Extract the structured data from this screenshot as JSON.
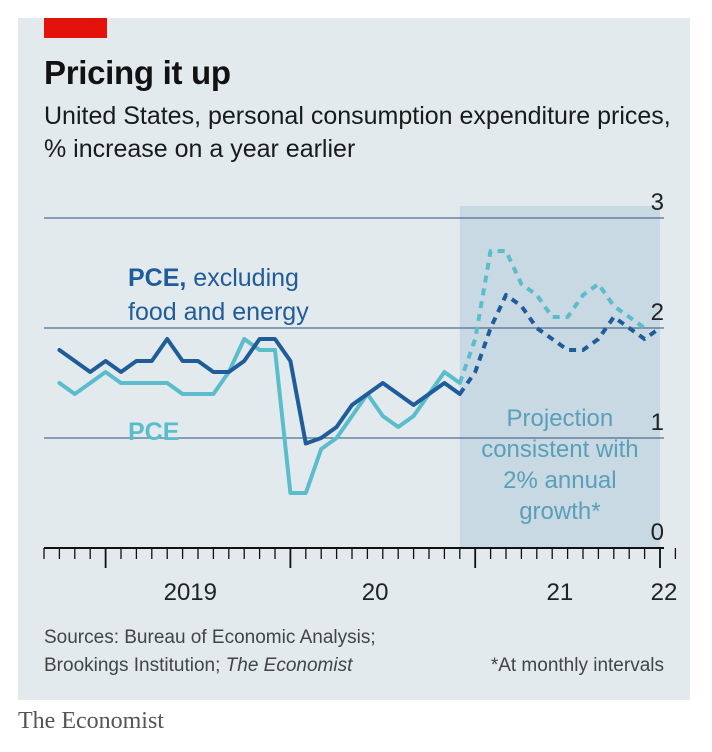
{
  "chart_data": {
    "type": "line",
    "title": "Pricing it up",
    "subtitle": "United States, personal consumption expenditure prices, % increase on a year earlier",
    "ylim": [
      0,
      3
    ],
    "yticks": [
      0,
      1,
      2,
      3
    ],
    "x_tick_labels": [
      "2019",
      "20",
      "21",
      "22"
    ],
    "x_start": "2018-09",
    "x_end": "2022-04",
    "series": [
      {
        "name": "PCE, excluding food and energy",
        "name_bold": "PCE,",
        "name_rest": " excluding food and energy",
        "color": "#1f5c99",
        "actual": [
          [
            "2018-10",
            1.8
          ],
          [
            "2018-11",
            1.7
          ],
          [
            "2018-12",
            1.6
          ],
          [
            "2019-01",
            1.7
          ],
          [
            "2019-02",
            1.6
          ],
          [
            "2019-03",
            1.7
          ],
          [
            "2019-04",
            1.7
          ],
          [
            "2019-05",
            1.9
          ],
          [
            "2019-06",
            1.7
          ],
          [
            "2019-07",
            1.7
          ],
          [
            "2019-08",
            1.6
          ],
          [
            "2019-09",
            1.6
          ],
          [
            "2019-10",
            1.7
          ],
          [
            "2019-11",
            1.9
          ],
          [
            "2019-12",
            1.9
          ],
          [
            "2020-01",
            1.7
          ],
          [
            "2020-02",
            0.95
          ],
          [
            "2020-03",
            1.0
          ],
          [
            "2020-04",
            1.1
          ],
          [
            "2020-05",
            1.3
          ],
          [
            "2020-06",
            1.4
          ],
          [
            "2020-07",
            1.5
          ],
          [
            "2020-08",
            1.4
          ],
          [
            "2020-09",
            1.3
          ],
          [
            "2020-10",
            1.4
          ],
          [
            "2020-11",
            1.5
          ],
          [
            "2020-12",
            1.4
          ]
        ],
        "projection": [
          [
            "2020-12",
            1.4
          ],
          [
            "2021-01",
            1.6
          ],
          [
            "2021-02",
            2.0
          ],
          [
            "2021-03",
            2.3
          ],
          [
            "2021-04",
            2.2
          ],
          [
            "2021-05",
            2.0
          ],
          [
            "2021-06",
            1.9
          ],
          [
            "2021-07",
            1.8
          ],
          [
            "2021-08",
            1.8
          ],
          [
            "2021-09",
            1.9
          ],
          [
            "2021-10",
            2.1
          ],
          [
            "2021-11",
            2.0
          ],
          [
            "2021-12",
            1.9
          ],
          [
            "2022-01",
            2.0
          ]
        ]
      },
      {
        "name": "PCE",
        "color": "#5bbdcc",
        "actual": [
          [
            "2018-10",
            1.5
          ],
          [
            "2018-11",
            1.4
          ],
          [
            "2018-12",
            1.5
          ],
          [
            "2019-01",
            1.6
          ],
          [
            "2019-02",
            1.5
          ],
          [
            "2019-03",
            1.5
          ],
          [
            "2019-04",
            1.5
          ],
          [
            "2019-05",
            1.5
          ],
          [
            "2019-06",
            1.4
          ],
          [
            "2019-07",
            1.4
          ],
          [
            "2019-08",
            1.4
          ],
          [
            "2019-09",
            1.6
          ],
          [
            "2019-10",
            1.9
          ],
          [
            "2019-11",
            1.8
          ],
          [
            "2019-12",
            1.8
          ],
          [
            "2020-01",
            0.5
          ],
          [
            "2020-02",
            0.5
          ],
          [
            "2020-03",
            0.9
          ],
          [
            "2020-04",
            1.0
          ],
          [
            "2020-05",
            1.2
          ],
          [
            "2020-06",
            1.4
          ],
          [
            "2020-07",
            1.2
          ],
          [
            "2020-08",
            1.1
          ],
          [
            "2020-09",
            1.2
          ],
          [
            "2020-10",
            1.4
          ],
          [
            "2020-11",
            1.6
          ],
          [
            "2020-12",
            1.5
          ]
        ],
        "projection": [
          [
            "2020-12",
            1.5
          ],
          [
            "2021-01",
            1.9
          ],
          [
            "2021-02",
            2.7
          ],
          [
            "2021-03",
            2.7
          ],
          [
            "2021-04",
            2.4
          ],
          [
            "2021-05",
            2.3
          ],
          [
            "2021-06",
            2.1
          ],
          [
            "2021-07",
            2.1
          ],
          [
            "2021-08",
            2.3
          ],
          [
            "2021-09",
            2.4
          ],
          [
            "2021-10",
            2.2
          ],
          [
            "2021-11",
            2.1
          ],
          [
            "2021-12",
            2.0
          ]
        ]
      }
    ],
    "projection_band": {
      "start": "2020-12",
      "end": "2022-01",
      "label": [
        "Projection",
        "consistent with",
        "2% annual",
        "growth*"
      ]
    }
  },
  "footer": {
    "sources_line1": "Sources: Bureau of Economic Analysis;",
    "sources_line2a": "Brookings Institution; ",
    "sources_line2b": "The Economist",
    "footnote": "*At monthly intervals"
  },
  "brand": "The Economist",
  "colors": {
    "accent": "#e3120b",
    "background": "#e2eaee",
    "band": "#c8d9e4"
  }
}
